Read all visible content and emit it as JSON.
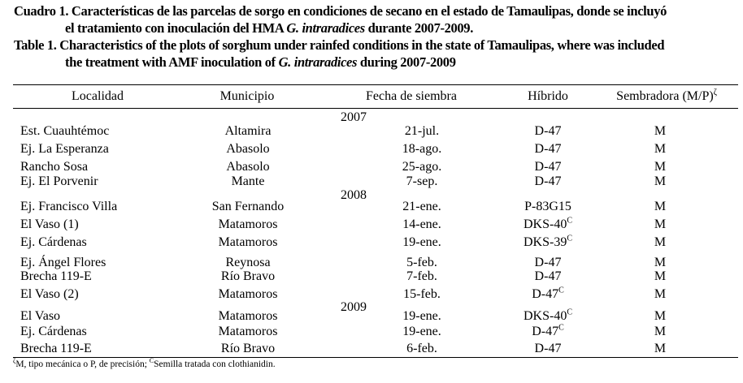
{
  "caption": {
    "es_line1": "Cuadro 1. Características de las parcelas de sorgo en condiciones de secano en el estado de Tamaulipas, donde se incluyó",
    "es_line2_a": "el tratamiento con inoculación del HMA ",
    "es_line2_italic": "G. intraradices",
    "es_line2_b": " durante 2007-2009.",
    "en_line1": "Table 1. Characteristics of the plots of sorghum under rainfed conditions in the state of Tamaulipas, where was included",
    "en_line2_a": "the treatment with AMF inoculation of ",
    "en_line2_italic": "G. intraradices",
    "en_line2_b": " during 2007-2009"
  },
  "table": {
    "headers": {
      "localidad": "Localidad",
      "municipio": "Municipio",
      "fecha": "Fecha de siembra",
      "hibrido": "Híbrido",
      "sembradora": "Sembradora (M/P)",
      "sembradora_sup": "ζ"
    },
    "years": [
      "2007",
      "2008",
      "2009"
    ],
    "rows": [
      {
        "localidad": "Est. Cuauhtémoc",
        "municipio": "Altamira",
        "fecha": "21-jul.",
        "hibrido": "D-47",
        "sup": "",
        "sembradora": "M"
      },
      {
        "localidad": "Ej. La Esperanza",
        "municipio": "Abasolo",
        "fecha": "18-ago.",
        "hibrido": "D-47",
        "sup": "",
        "sembradora": "M"
      },
      {
        "localidad": "Rancho Sosa",
        "municipio": "Abasolo",
        "fecha": "25-ago.",
        "hibrido": "D-47",
        "sup": "",
        "sembradora": "M"
      },
      {
        "localidad": "Ej. El Porvenir",
        "municipio": "Mante",
        "fecha": "7-sep.",
        "hibrido": "D-47",
        "sup": "",
        "sembradora": "M"
      },
      {
        "localidad": "Ej. Francisco Villa",
        "municipio": "San Fernando",
        "fecha": "21-ene.",
        "hibrido": "P-83G15",
        "sup": "",
        "sembradora": "M"
      },
      {
        "localidad": "El Vaso (1)",
        "municipio": "Matamoros",
        "fecha": "14-ene.",
        "hibrido": "DKS-40",
        "sup": "C",
        "sembradora": "M"
      },
      {
        "localidad": "Ej. Cárdenas",
        "municipio": "Matamoros",
        "fecha": "19-ene.",
        "hibrido": "DKS-39",
        "sup": "C",
        "sembradora": "M"
      },
      {
        "localidad": "Ej. Ángel Flores",
        "municipio": "Reynosa",
        "fecha": "5-feb.",
        "hibrido": "D-47",
        "sup": "",
        "sembradora": "M"
      },
      {
        "localidad": "Brecha 119-E",
        "municipio": "Río Bravo",
        "fecha": "7-feb.",
        "hibrido": "D-47",
        "sup": "",
        "sembradora": "M"
      },
      {
        "localidad": "El Vaso (2)",
        "municipio": "Matamoros",
        "fecha": "15-feb.",
        "hibrido": "D-47",
        "sup": "C",
        "sembradora": "M"
      },
      {
        "localidad": "El Vaso",
        "municipio": "Matamoros",
        "fecha": "19-ene.",
        "hibrido": "DKS-40",
        "sup": "C",
        "sembradora": "M"
      },
      {
        "localidad": "Ej. Cárdenas",
        "municipio": "Matamoros",
        "fecha": "19-ene.",
        "hibrido": "D-47",
        "sup": "C",
        "sembradora": "M"
      },
      {
        "localidad": "Brecha 119-E",
        "municipio": "Río Bravo",
        "fecha": "6-feb.",
        "hibrido": "D-47",
        "sup": "",
        "sembradora": "M"
      }
    ]
  },
  "footnote": {
    "sup1": "ζ",
    "text1": "M, tipo mecánica o P, de precisión; ",
    "sup2": "C",
    "text2": "Semilla tratada con clothianidin."
  }
}
